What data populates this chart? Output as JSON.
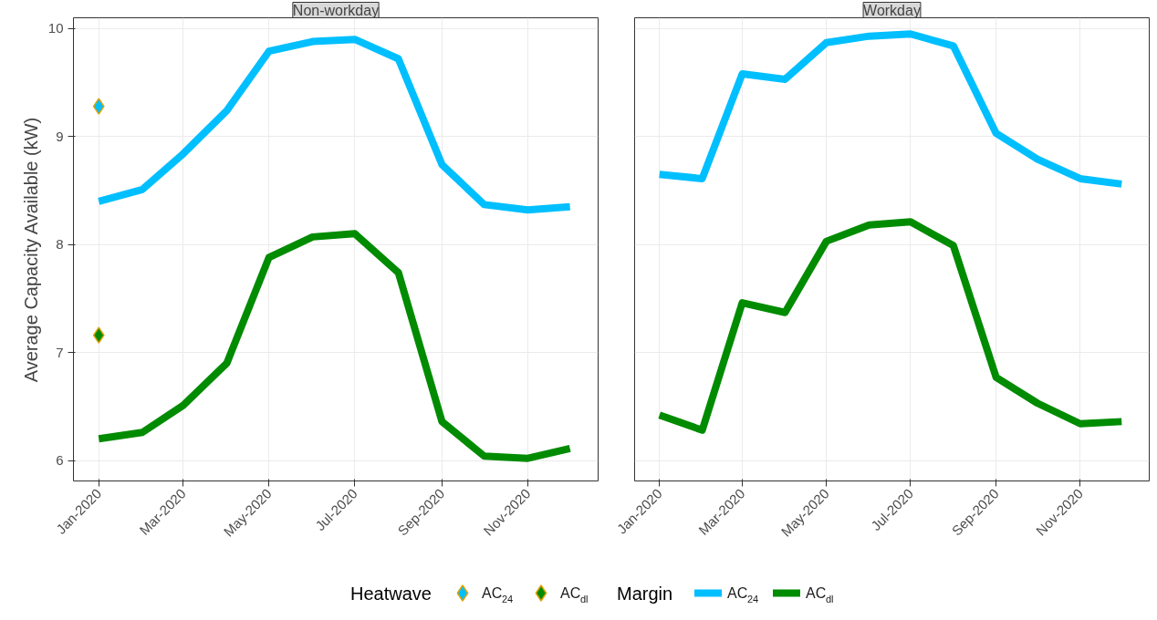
{
  "chart_data": [
    {
      "type": "line",
      "title": "Non-workday",
      "ylabel": "Average Capacity Available (kW)",
      "x": [
        "2020-01-01",
        "2020-02-01",
        "2020-03-01",
        "2020-04-01",
        "2020-05-01",
        "2020-06-01",
        "2020-07-01",
        "2020-08-01",
        "2020-09-01",
        "2020-10-01",
        "2020-11-01",
        "2020-12-01"
      ],
      "xlim": [
        "2019-12-14",
        "2020-12-21"
      ],
      "ylim": [
        5.81,
        10.1
      ],
      "yticks": [
        6,
        7,
        8,
        9,
        10
      ],
      "xticks": [
        {
          "value": "2020-01-01",
          "label": "Jan-2020"
        },
        {
          "value": "2020-03-01",
          "label": "Mar-2020"
        },
        {
          "value": "2020-05-01",
          "label": "May-2020"
        },
        {
          "value": "2020-07-01",
          "label": "Jul-2020"
        },
        {
          "value": "2020-09-01",
          "label": "Sep-2020"
        },
        {
          "value": "2020-11-01",
          "label": "Nov-2020"
        }
      ],
      "grid": true,
      "legend": "bottom",
      "legend_title": [
        "Heatwave",
        "Margin"
      ],
      "series": [
        {
          "name": "AC$_{24}$",
          "type": "scatter",
          "marker": "diamond",
          "color": "#00bfff",
          "x": [
            "2020-01-01"
          ],
          "values": [
            9.28
          ]
        },
        {
          "name": "AC$_{dl}$",
          "type": "scatter",
          "marker": "diamond",
          "color": "#008b00",
          "x": [
            "2020-01-01"
          ],
          "values": [
            7.16
          ]
        },
        {
          "name": "AC$_{24}$",
          "color": "#00bfff",
          "values": [
            8.4,
            8.51,
            8.84,
            9.24,
            9.79,
            9.88,
            9.9,
            9.72,
            8.74,
            8.37,
            8.32,
            8.35
          ]
        },
        {
          "name": "AC$_{dl}$",
          "color": "#008b00",
          "values": [
            6.2,
            6.26,
            6.51,
            6.9,
            7.88,
            8.07,
            8.1,
            7.74,
            6.36,
            6.04,
            6.02,
            6.11
          ]
        }
      ]
    },
    {
      "type": "line",
      "title": "Workday",
      "tick_labels": "x",
      "x": [
        "2020-01-01",
        "2020-02-01",
        "2020-03-01",
        "2020-04-01",
        "2020-05-01",
        "2020-06-01",
        "2020-07-01",
        "2020-08-01",
        "2020-09-01",
        "2020-10-01",
        "2020-11-01",
        "2020-12-01"
      ],
      "xlim": [
        "2019-12-14",
        "2020-12-21"
      ],
      "ylim": [
        5.81,
        10.1
      ],
      "yticks": [
        6,
        7,
        8,
        9,
        10
      ],
      "xticks": [
        {
          "value": "2020-01-01",
          "label": "Jan-2020"
        },
        {
          "value": "2020-03-01",
          "label": "Mar-2020"
        },
        {
          "value": "2020-05-01",
          "label": "May-2020"
        },
        {
          "value": "2020-07-01",
          "label": "Jul-2020"
        },
        {
          "value": "2020-09-01",
          "label": "Sep-2020"
        },
        {
          "value": "2020-11-01",
          "label": "Nov-2020"
        }
      ],
      "grid": true,
      "series": [
        {
          "color": "#00bfff",
          "values": [
            8.65,
            8.61,
            9.58,
            9.53,
            9.87,
            9.93,
            9.95,
            9.84,
            9.03,
            8.79,
            8.61,
            8.56
          ]
        },
        {
          "color": "#008b00",
          "values": [
            6.42,
            6.28,
            7.46,
            7.37,
            8.03,
            8.18,
            8.21,
            7.99,
            6.77,
            6.53,
            6.34,
            6.36
          ]
        }
      ]
    }
  ]
}
